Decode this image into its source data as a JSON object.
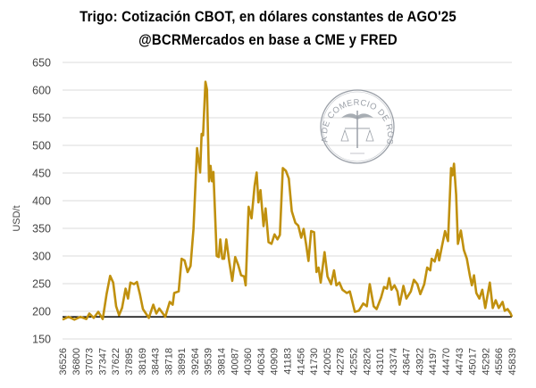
{
  "chart_data": {
    "type": "line",
    "title": "Trigo: Cotización CBOT, en dólares constantes de AGO'25",
    "subtitle": "@BCRMercados en base a CME y FRED",
    "xlabel": "",
    "ylabel": "USD/t",
    "ylim": [
      150,
      650
    ],
    "xlim": [
      36526,
      45839
    ],
    "yticks": [
      "150",
      "200",
      "250",
      "300",
      "350",
      "400",
      "450",
      "500",
      "550",
      "600",
      "650"
    ],
    "xticks": [
      "36526",
      "36800",
      "37073",
      "37347",
      "37622",
      "37895",
      "38169",
      "38443",
      "38718",
      "38991",
      "39264",
      "39539",
      "39814",
      "40087",
      "40360",
      "40634",
      "40909",
      "41183",
      "41456",
      "41730",
      "42005",
      "42278",
      "42552",
      "42826",
      "43101",
      "43374",
      "43647",
      "43922",
      "44197",
      "44470",
      "44743",
      "45017",
      "45292",
      "45566",
      "45839"
    ],
    "grid": true,
    "reference_line": 190,
    "colors": {
      "line": "#C0900E",
      "reference": "#000000",
      "grid": "#e2e2e2"
    },
    "watermark": "BOLSA DE COMERCIO DE ROSARIO",
    "series": [
      {
        "name": "Trigo CBOT",
        "x": [
          36526,
          36650,
          36773,
          36896,
          37020,
          37081,
          37174,
          37267,
          37359,
          37439,
          37513,
          37575,
          37637,
          37698,
          37760,
          37834,
          37884,
          37933,
          38007,
          38069,
          38130,
          38192,
          38315,
          38408,
          38470,
          38531,
          38655,
          38747,
          38809,
          38840,
          38933,
          38994,
          39056,
          39118,
          39179,
          39241,
          39315,
          39377,
          39408,
          39439,
          39488,
          39519,
          39562,
          39593,
          39624,
          39654,
          39722,
          39765,
          39796,
          39839,
          39876,
          39920,
          39981,
          40043,
          40105,
          40166,
          40228,
          40290,
          40321,
          40382,
          40444,
          40506,
          40549,
          40586,
          40629,
          40691,
          40734,
          40796,
          40857,
          40919,
          40981,
          41030,
          41092,
          41154,
          41215,
          41277,
          41351,
          41413,
          41474,
          41524,
          41573,
          41623,
          41678,
          41740,
          41789,
          41832,
          41876,
          41956,
          42017,
          42091,
          42153,
          42203,
          42264,
          42326,
          42418,
          42480,
          42511,
          42585,
          42665,
          42758,
          42832,
          42894,
          42974,
          43036,
          43128,
          43190,
          43251,
          43295,
          43344,
          43406,
          43467,
          43511,
          43591,
          43653,
          43745,
          43807,
          43881,
          43942,
          44023,
          44084,
          44146,
          44177,
          44239,
          44300,
          44331,
          44393,
          44455,
          44516,
          44578,
          44609,
          44640,
          44683,
          44720,
          44782,
          44843,
          44905,
          44967,
          45010,
          45054,
          45103,
          45165,
          45226,
          45288,
          45381,
          45442,
          45504,
          45566,
          45646,
          45690,
          45751,
          45813,
          45839
        ],
        "values": [
          185,
          190,
          185,
          190,
          186,
          196,
          188,
          199,
          186,
          231,
          264,
          252,
          209,
          193,
          206,
          241,
          223,
          252,
          249,
          253,
          231,
          204,
          188,
          212,
          196,
          205,
          190,
          217,
          212,
          233,
          236,
          295,
          292,
          271,
          282,
          349,
          495,
          451,
          521,
          518,
          615,
          601,
          435,
          463,
          435,
          452,
          300,
          298,
          330,
          295,
          295,
          330,
          290,
          255,
          298,
          284,
          265,
          263,
          247,
          389,
          368,
          427,
          451,
          397,
          419,
          354,
          386,
          325,
          322,
          339,
          330,
          338,
          459,
          454,
          440,
          381,
          360,
          355,
          333,
          349,
          322,
          291,
          345,
          343,
          271,
          279,
          252,
          307,
          263,
          249,
          274,
          247,
          252,
          239,
          233,
          236,
          225,
          199,
          201,
          214,
          209,
          249,
          209,
          204,
          225,
          244,
          241,
          260,
          239,
          247,
          236,
          212,
          246,
          223,
          236,
          257,
          249,
          231,
          249,
          279,
          274,
          295,
          290,
          311,
          292,
          319,
          345,
          327,
          459,
          446,
          467,
          411,
          322,
          346,
          311,
          295,
          265,
          247,
          265,
          233,
          223,
          239,
          206,
          252,
          206,
          220,
          206,
          217,
          201,
          204,
          196,
          190
        ]
      }
    ]
  }
}
